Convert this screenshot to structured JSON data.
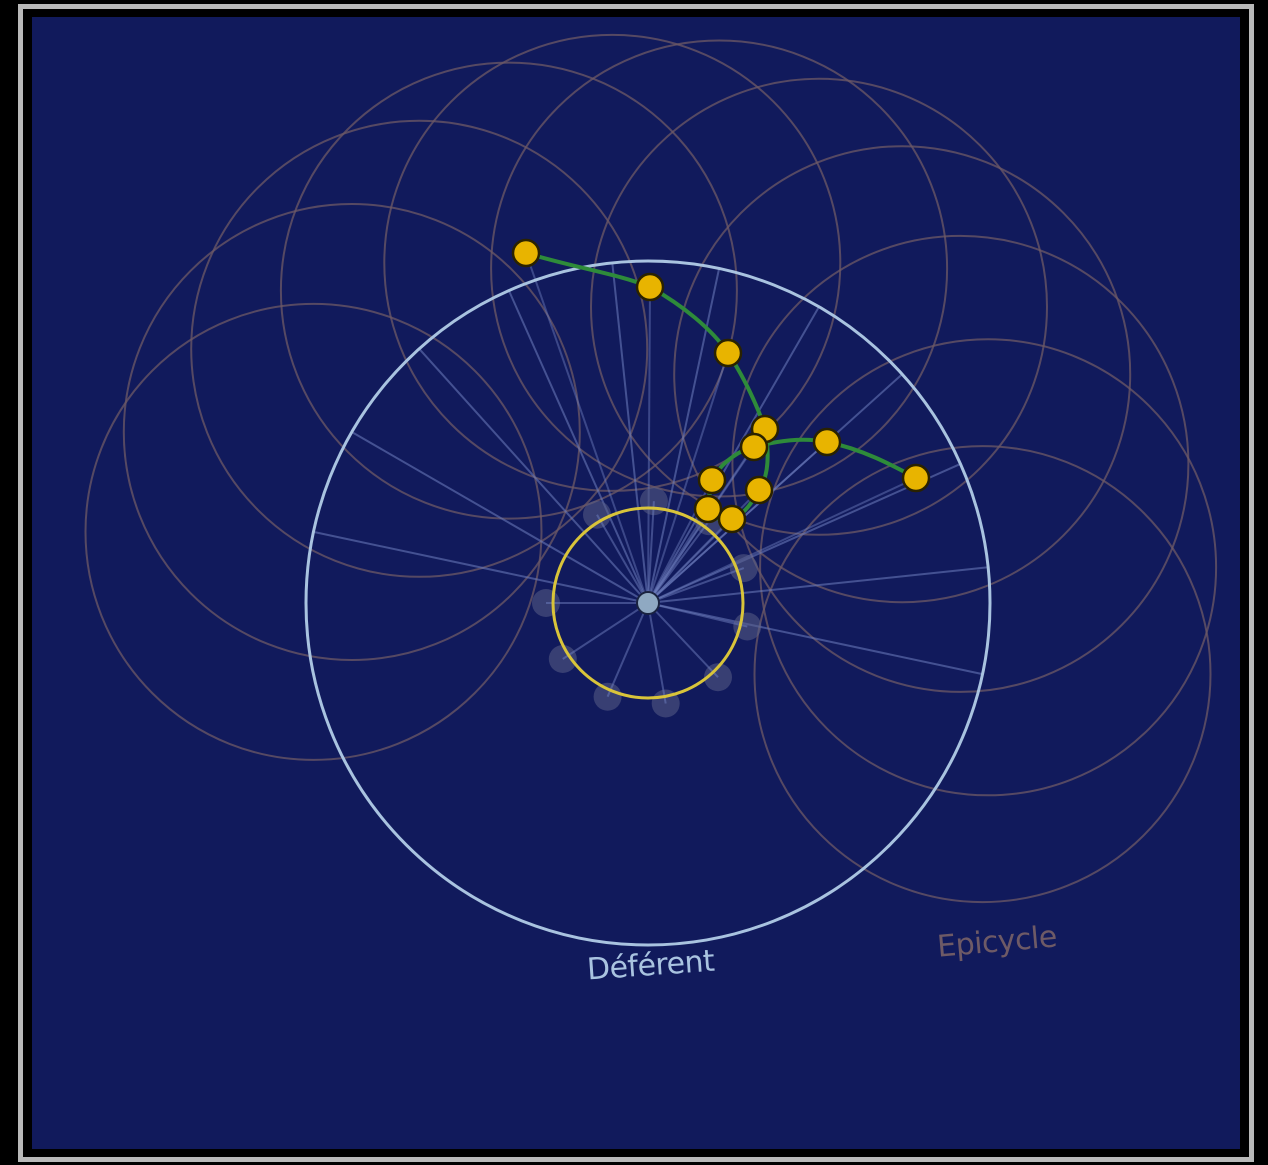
{
  "diagram": {
    "labels": {
      "deferent": "Déférent",
      "epicycle": "Epicycle"
    },
    "colors": {
      "background": "#111a5c",
      "frame": "#b9b9b9",
      "deferent": "#a9c3e0",
      "epicycle": "#6e5a66",
      "spokes": "#6f7fbf",
      "sun_orbit": "#d9c43a",
      "earth": "#8fa9c2",
      "planet": "#e8b400",
      "path": "#2e8b3a",
      "ghost_sun": "#5a5e86"
    },
    "planet_count": 11,
    "epicycle_count": 11,
    "ghost_sun_count": 10
  }
}
